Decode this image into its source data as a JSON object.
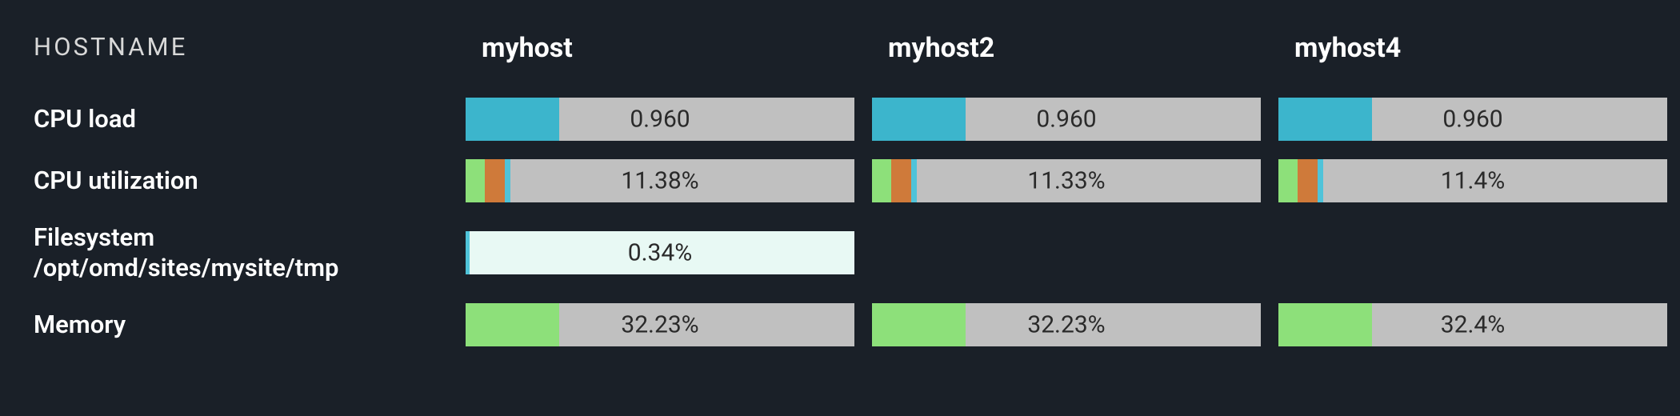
{
  "colors": {
    "background": "#1a2028",
    "bar_bg": "#c0c0c0",
    "text_light": "#ffffff",
    "text_dim": "#d8d8d8",
    "text_dark": "#2a2a2a",
    "cyan": "#3cb5cc",
    "green": "#8de07a",
    "orange": "#cf7a3a",
    "pale_mint": "#e8f9f4",
    "teal_thin": "#4fc3d9"
  },
  "header": {
    "label": "HOSTNAME",
    "hosts": [
      "myhost",
      "myhost2",
      "myhost4"
    ]
  },
  "rows": [
    {
      "label": "CPU load",
      "multiline": false,
      "cells": [
        {
          "value": "0.960",
          "segments": [
            {
              "color": "#3cb5cc",
              "pct": 24
            }
          ],
          "bg": "#c0c0c0"
        },
        {
          "value": "0.960",
          "segments": [
            {
              "color": "#3cb5cc",
              "pct": 24
            }
          ],
          "bg": "#c0c0c0"
        },
        {
          "value": "0.960",
          "segments": [
            {
              "color": "#3cb5cc",
              "pct": 24
            }
          ],
          "bg": "#c0c0c0"
        }
      ]
    },
    {
      "label": "CPU utilization",
      "multiline": false,
      "cells": [
        {
          "value": "11.38%",
          "segments": [
            {
              "color": "#8de07a",
              "pct": 5
            },
            {
              "color": "#cf7a3a",
              "pct": 5
            },
            {
              "color": "#4fc3d9",
              "pct": 1.5
            }
          ],
          "bg": "#c0c0c0"
        },
        {
          "value": "11.33%",
          "segments": [
            {
              "color": "#8de07a",
              "pct": 5
            },
            {
              "color": "#cf7a3a",
              "pct": 5
            },
            {
              "color": "#4fc3d9",
              "pct": 1.5
            }
          ],
          "bg": "#c0c0c0"
        },
        {
          "value": "11.4%",
          "segments": [
            {
              "color": "#8de07a",
              "pct": 5
            },
            {
              "color": "#cf7a3a",
              "pct": 5
            },
            {
              "color": "#4fc3d9",
              "pct": 1.5
            }
          ],
          "bg": "#c0c0c0"
        }
      ]
    },
    {
      "label": "Filesystem",
      "label2": "/opt/omd/sites/mysite/tmp",
      "multiline": true,
      "cells": [
        {
          "value": "0.34%",
          "segments": [
            {
              "color": "#4fc3d9",
              "pct": 1
            }
          ],
          "bg": "#e8f9f4"
        },
        null,
        null
      ]
    },
    {
      "label": "Memory",
      "multiline": false,
      "cells": [
        {
          "value": "32.23%",
          "segments": [
            {
              "color": "#8de07a",
              "pct": 24
            }
          ],
          "bg": "#c0c0c0"
        },
        {
          "value": "32.23%",
          "segments": [
            {
              "color": "#8de07a",
              "pct": 24
            }
          ],
          "bg": "#c0c0c0"
        },
        {
          "value": "32.4%",
          "segments": [
            {
              "color": "#8de07a",
              "pct": 24
            }
          ],
          "bg": "#c0c0c0"
        }
      ]
    }
  ]
}
